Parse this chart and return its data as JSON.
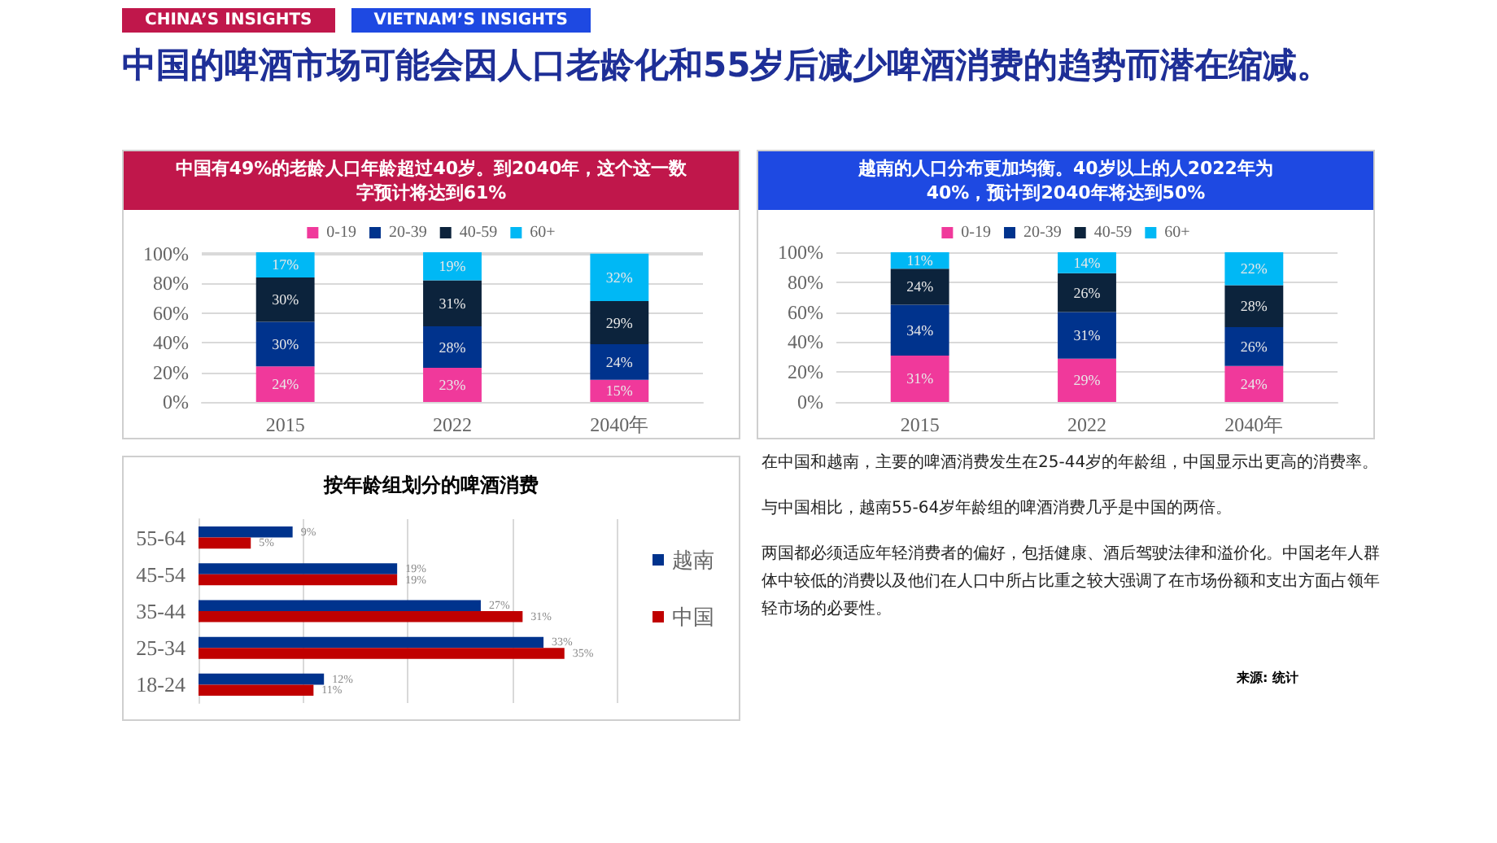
{
  "chart_data": [
    {
      "type": "other",
      "title": "中国的啤酒市场可能会因人口老龄化和55岁后减少啤酒消费的趋势而潜在缩减。",
      "annotations": [
        "CHINA’S INSIGHTS",
        "VIETNAM’S INSIGHTS"
      ]
    },
    {
      "type": "bar",
      "title": "中国有49%的老龄人口年龄超过40岁。到2040年，这个这一数字预计将达到61%",
      "categories": [
        "2015",
        "2022",
        "2040年"
      ],
      "stacked": true,
      "ylim": [
        0,
        101
      ],
      "yticks": [
        {
          "value": 0,
          "label": "0%"
        },
        {
          "value": 20,
          "label": "20%"
        },
        {
          "value": 40,
          "label": "40%"
        },
        {
          "value": 60,
          "label": "60%"
        },
        {
          "value": 80,
          "label": "80%"
        },
        {
          "value": 100,
          "label": "100%"
        }
      ],
      "grid": "y",
      "legend": "top",
      "series": [
        {
          "name": "0-19",
          "color": "#f0399b",
          "values": [
            24,
            23,
            15
          ],
          "value_labels": [
            "24%",
            "23%",
            "15%"
          ]
        },
        {
          "name": "20-39",
          "color": "#00338d",
          "values": [
            30,
            28,
            24
          ],
          "value_labels": [
            "30%",
            "28%",
            "24%"
          ]
        },
        {
          "name": "40-59",
          "color": "#0c233c",
          "values": [
            30,
            31,
            29
          ],
          "value_labels": [
            "30%",
            "31%",
            "29%"
          ]
        },
        {
          "name": "60+",
          "color": "#00b8f5",
          "values": [
            17,
            19,
            32
          ],
          "value_labels": [
            "17%",
            "19%",
            "32%"
          ]
        }
      ]
    },
    {
      "type": "bar",
      "title": "越南的人口分布更加均衡。40岁以上的人2022年为40%，预计到2040年将达到50%",
      "categories": [
        "2015",
        "2022",
        "2040年"
      ],
      "stacked": true,
      "ylim": [
        0,
        100
      ],
      "yticks": [
        {
          "value": 0,
          "label": "0%"
        },
        {
          "value": 20,
          "label": "20%"
        },
        {
          "value": 40,
          "label": "40%"
        },
        {
          "value": 60,
          "label": "60%"
        },
        {
          "value": 80,
          "label": "80%"
        },
        {
          "value": 100,
          "label": "100%"
        }
      ],
      "grid": "y",
      "legend": "top",
      "series": [
        {
          "name": "0-19",
          "color": "#f0399b",
          "values": [
            31,
            29,
            24
          ],
          "value_labels": [
            "31%",
            "29%",
            "24%"
          ]
        },
        {
          "name": "20-39",
          "color": "#00338d",
          "values": [
            34,
            31,
            26
          ],
          "value_labels": [
            "34%",
            "31%",
            "26%"
          ]
        },
        {
          "name": "40-59",
          "color": "#0c233c",
          "values": [
            24,
            26,
            28
          ],
          "value_labels": [
            "24%",
            "26%",
            "28%"
          ]
        },
        {
          "name": "60+",
          "color": "#00b8f5",
          "values": [
            11,
            14,
            22
          ],
          "value_labels": [
            "11%",
            "14%",
            "22%"
          ]
        }
      ]
    },
    {
      "type": "bar",
      "title": "按年龄组划分的啤酒消费",
      "orientation": "horizontal",
      "categories": [
        "55-64",
        "45-54",
        "35-44",
        "25-34",
        "18-24"
      ],
      "xlim": [
        0,
        40
      ],
      "xticks": [
        {
          "value": 0,
          "label": null
        },
        {
          "value": 10,
          "label": null
        },
        {
          "value": 20,
          "label": null
        },
        {
          "value": 30,
          "label": null
        },
        {
          "value": 40,
          "label": null
        }
      ],
      "grid": "x",
      "tick_labels": "y",
      "legend": "right",
      "series": [
        {
          "name": "越南",
          "color": "#00338d",
          "values": [
            9,
            19,
            27,
            33,
            12
          ],
          "value_labels": [
            "9%",
            "19%",
            "27%",
            "33%",
            "12%"
          ]
        },
        {
          "name": "中国",
          "color": "#c00000",
          "values": [
            5,
            19,
            31,
            35,
            11
          ],
          "value_labels": [
            "5%",
            "19%",
            "31%",
            "35%",
            "11%"
          ]
        }
      ]
    },
    {
      "type": "other",
      "annotations": [
        "在中国和越南，主要的啤酒消费发生在25-44岁的年龄组，中国显示出更高的消费率。",
        "与中国相比，越南55-64岁年龄组的啤酒消费几乎是中国的两倍。",
        "两国都必须适应年轻消费者的偏好，包括健康、酒后驾驶法律和溢价化。中国老年人群体中较低的消费以及他们在人口中所占比重之较大强调了在市场份额和支出方面占领年轻市场的必要性。",
        "来源: 统计"
      ]
    }
  ]
}
